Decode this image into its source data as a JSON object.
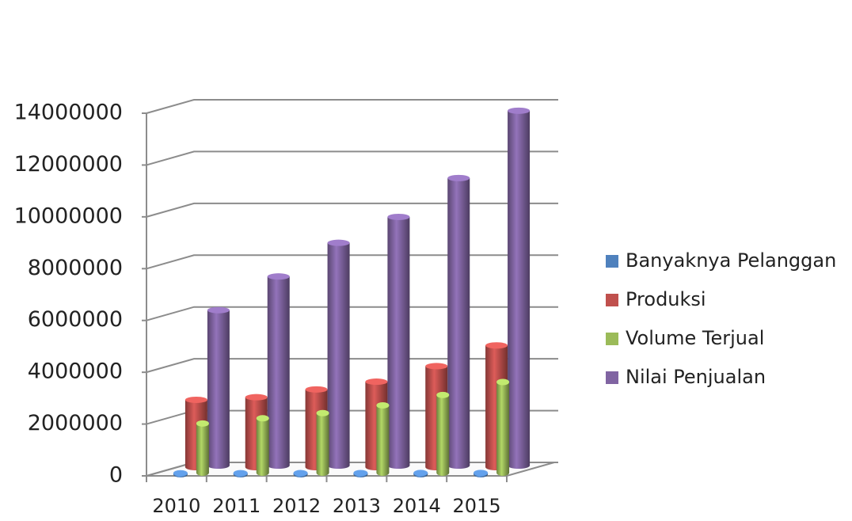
{
  "chart_data": {
    "type": "bar3d",
    "categories": [
      "2010",
      "2011",
      "2012",
      "2013",
      "2014",
      "2015"
    ],
    "series": [
      {
        "name": "Banyaknya Pelanggan",
        "color": "#4f81bd",
        "values": [
          40000,
          42000,
          44000,
          46000,
          48000,
          50000
        ]
      },
      {
        "name": "Produksi",
        "color": "#c0504d",
        "values": [
          2600000,
          2700000,
          3000000,
          3300000,
          3900000,
          4700000
        ]
      },
      {
        "name": "Volume Terjual",
        "color": "#9bbb59",
        "values": [
          1900000,
          2100000,
          2300000,
          2600000,
          3000000,
          3500000
        ]
      },
      {
        "name": "Nilai Penjualan",
        "color": "#8064a2",
        "values": [
          6000000,
          7300000,
          8600000,
          9600000,
          11100000,
          13700000
        ]
      }
    ],
    "ylim": [
      0,
      14000000
    ],
    "yticks": [
      0,
      2000000,
      4000000,
      6000000,
      8000000,
      10000000,
      12000000,
      14000000
    ],
    "grid": true,
    "legend": "right"
  }
}
